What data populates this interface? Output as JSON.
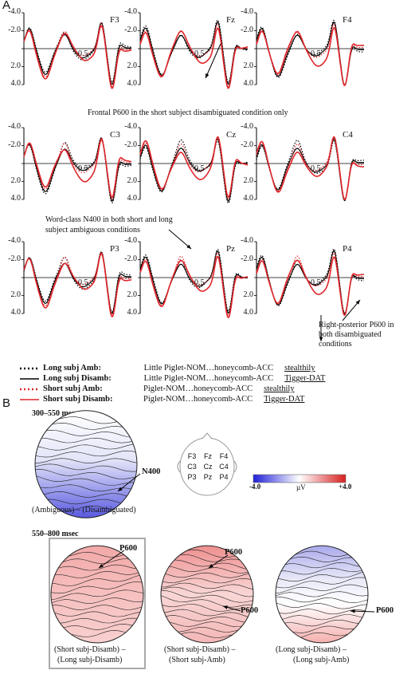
{
  "panel_a": {
    "letter": "A",
    "y_ticks": [
      "-4.0",
      "-2.0",
      "0",
      "2.0",
      "4.0"
    ],
    "x_tick": "0.5",
    "channels": [
      {
        "id": "F3",
        "label": "F3"
      },
      {
        "id": "Fz",
        "label": "Fz"
      },
      {
        "id": "F4",
        "label": "F4"
      },
      {
        "id": "C3",
        "label": "C3"
      },
      {
        "id": "Cz",
        "label": "Cz"
      },
      {
        "id": "C4",
        "label": "C4"
      },
      {
        "id": "P3",
        "label": "P3"
      },
      {
        "id": "Pz",
        "label": "Pz"
      },
      {
        "id": "P4",
        "label": "P4"
      }
    ],
    "annotations": {
      "frontal": "Frontal P600 in the short subject disambiguated condition only",
      "n400_line1": "Word-class N400 in both short and long",
      "n400_line2": "subject ambiguous conditions",
      "rp_line1": "Right-posterior P600 in",
      "rp_line2": "both disambiguated",
      "rp_line3": "conditions"
    },
    "legend": [
      {
        "label": "Long subj Amb:",
        "w1": "Little Piglet-",
        "c1": "NOM",
        "dots": "…",
        "w2": "honeycomb-",
        "c2": "ACC",
        "target": "stealthily",
        "target_case": "",
        "style": "dotted",
        "color": "#000000"
      },
      {
        "label": "Long subj Disamb:",
        "w1": "Little Piglet-",
        "c1": "NOM",
        "dots": "…",
        "w2": "honeycomb-",
        "c2": "ACC",
        "target": "Tigger-",
        "target_case": "DAT",
        "style": "solid",
        "color": "#000000"
      },
      {
        "label": "Short subj Amb:",
        "w1": "Piglet-",
        "c1": "NOM",
        "dots": "…",
        "w2": "honeycomb-",
        "c2": "ACC",
        "target": "stealthily",
        "target_case": "",
        "style": "dotted",
        "color": "#e0262b"
      },
      {
        "label": "Short subj Disamb:",
        "w1": "Piglet-",
        "c1": "NOM",
        "dots": "…",
        "w2": "honeycomb-",
        "c2": "ACC",
        "target": "Tigger-",
        "target_case": "DAT",
        "style": "solid",
        "color": "#e0262b"
      }
    ]
  },
  "panel_b": {
    "letter": "B",
    "window1": "300–550 msec",
    "window2": "550–800 msec",
    "n400": "N400",
    "p600": "P600",
    "contrast1": "(Ambiguous) – (Disambiguated)",
    "contrast2_a": "(Short subj-Disamb) –",
    "contrast2_b": "(Long subj-Disamb)",
    "contrast3_a": "(Short subj-Disamb) –",
    "contrast3_b": "(Short subj-Amb)",
    "contrast4_a": "(Long subj-Disamb) –",
    "contrast4_b": "(Long subj-Amb)",
    "electrodes": [
      "F3",
      "Fz",
      "F4",
      "C3",
      "Cz",
      "C4",
      "P3",
      "Pz",
      "P4"
    ],
    "scale_min": "-4.0",
    "scale_unit": "µV",
    "scale_max": "+4.0",
    "colors": {
      "negative": "#2a2ad6",
      "positive": "#d42020"
    }
  }
}
